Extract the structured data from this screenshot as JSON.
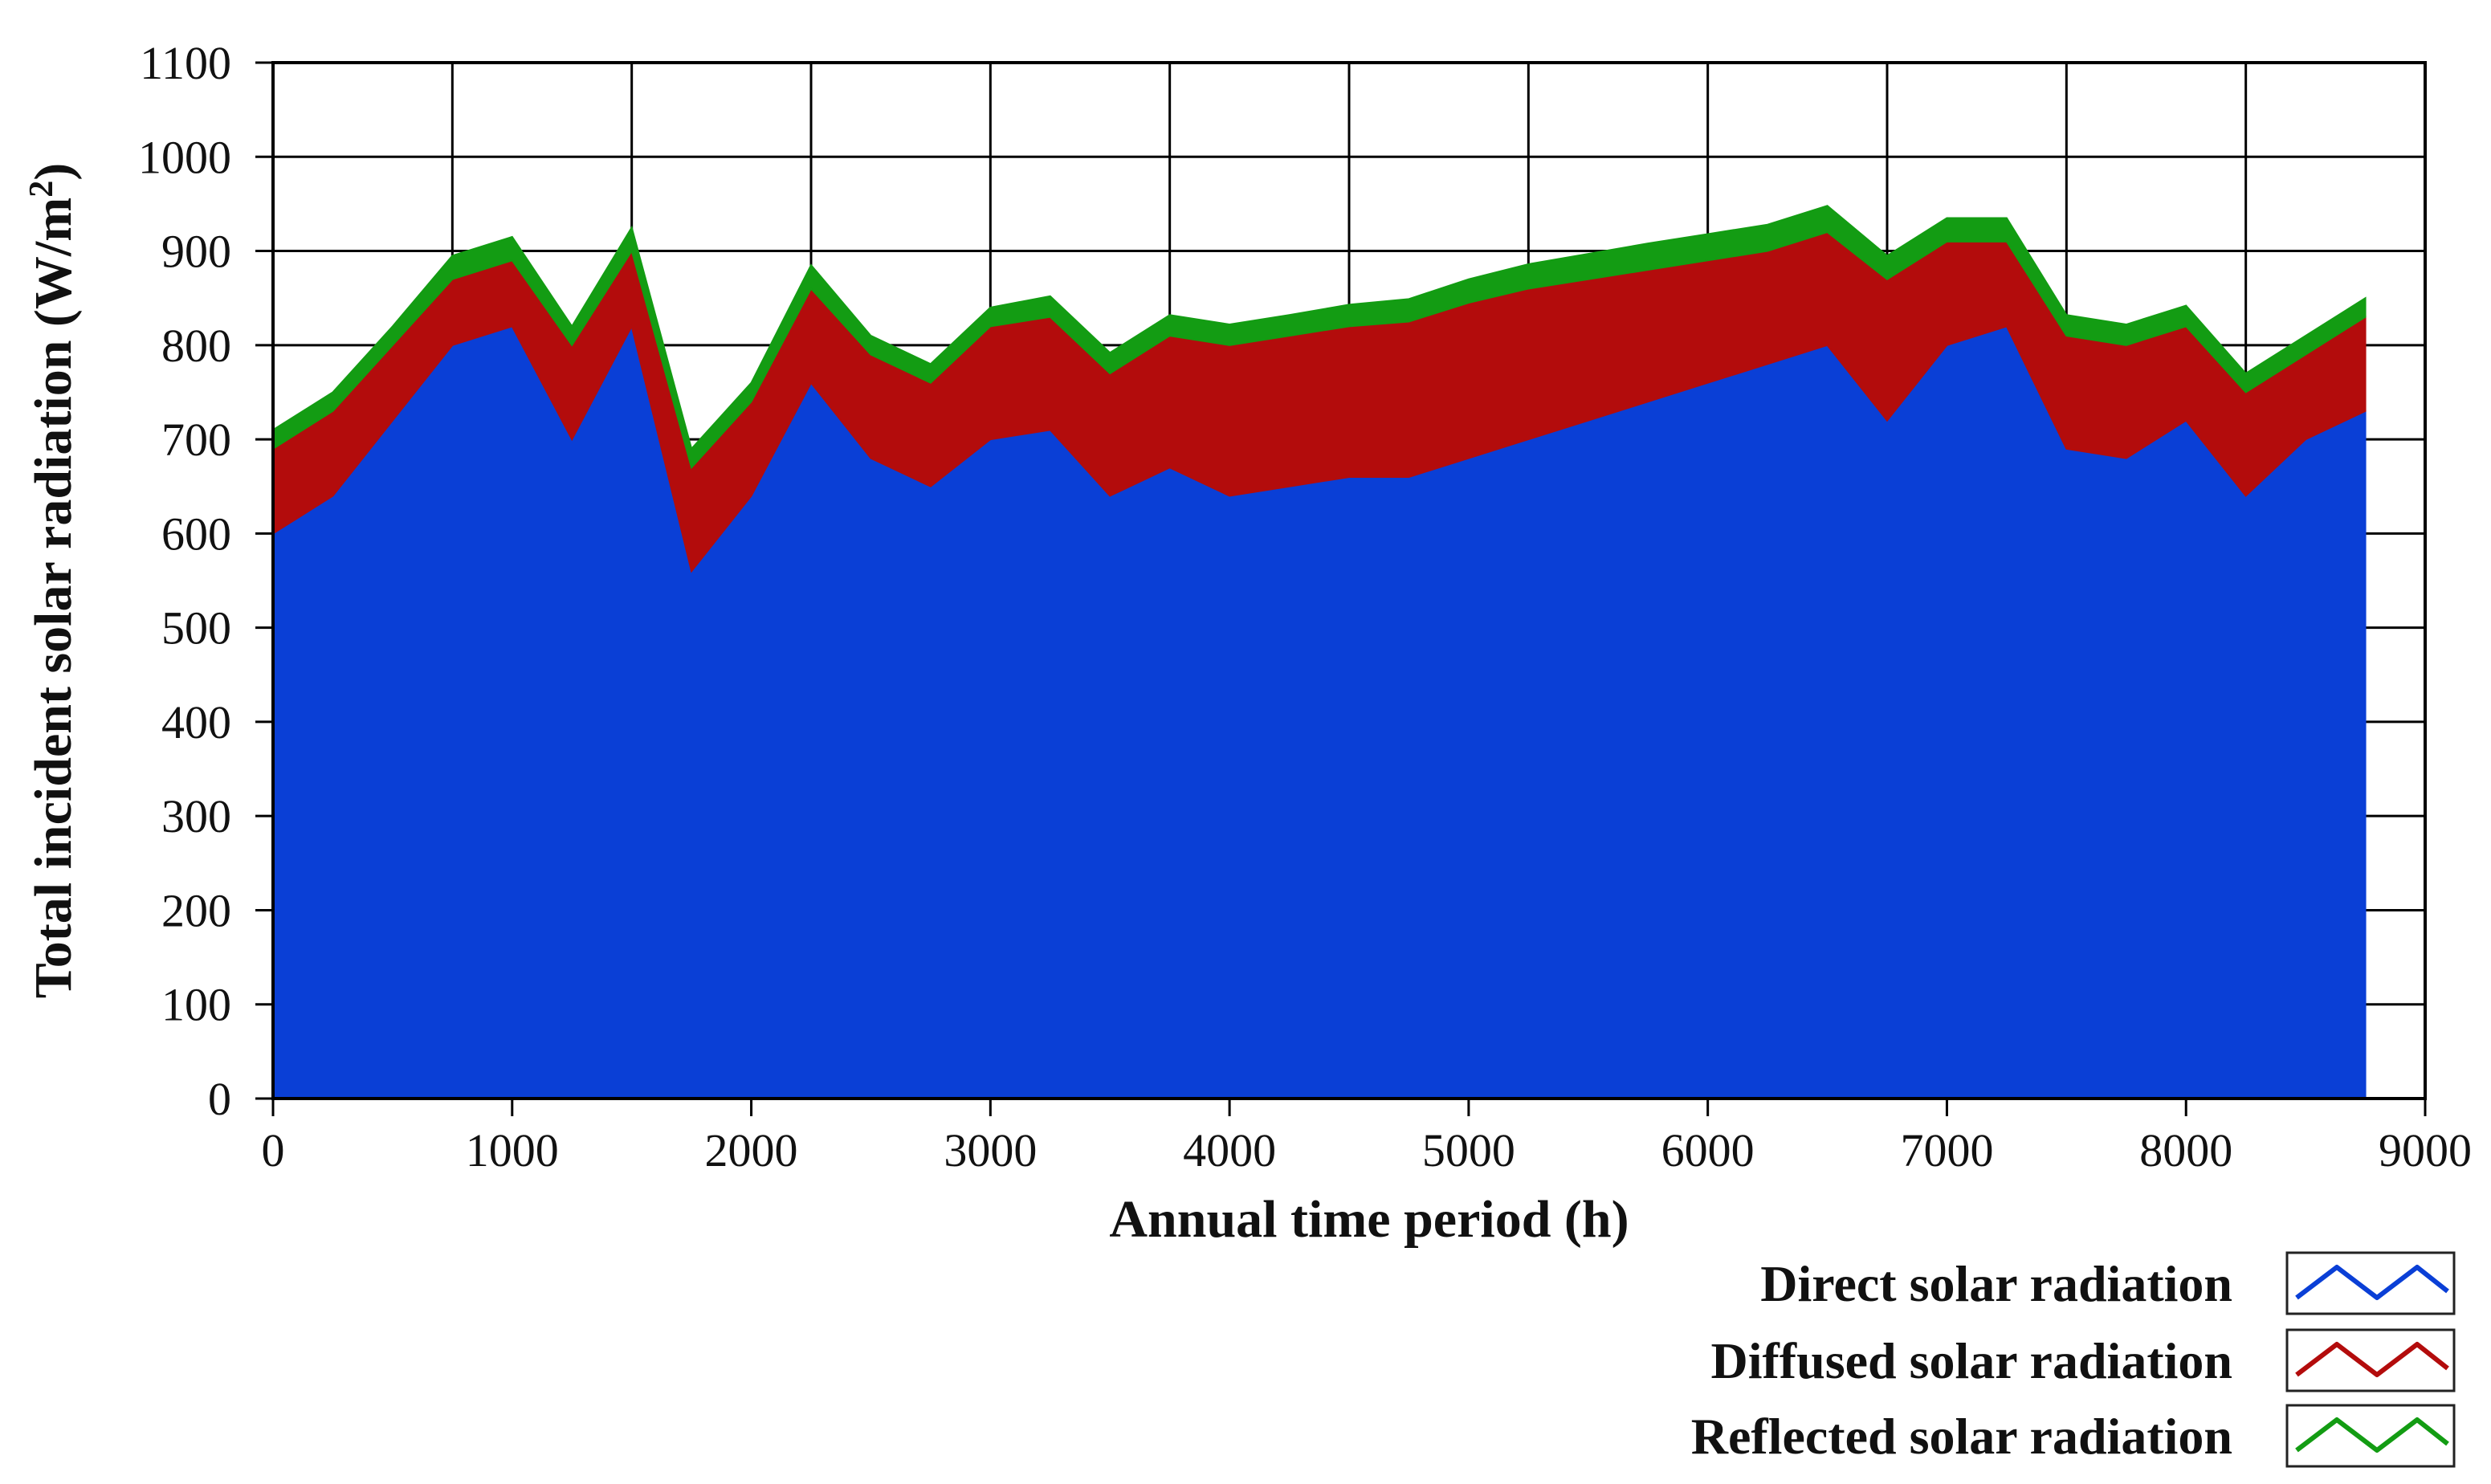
{
  "chart_data": {
    "type": "area",
    "stacked": true,
    "title": "",
    "xlabel": "Annual time period (h)",
    "ylabel_main": "Total incident solar radiation (W/m",
    "ylabel_sup": "2",
    "ylabel_close": ")",
    "xlim": [
      0,
      9000
    ],
    "ylim": [
      0,
      1100
    ],
    "xticks": [
      0,
      1000,
      2000,
      3000,
      4000,
      5000,
      6000,
      7000,
      8000,
      9000
    ],
    "yticks": [
      0,
      100,
      200,
      300,
      400,
      500,
      600,
      700,
      800,
      900,
      1000,
      1100
    ],
    "grid": true,
    "legend_position": "bottom-right",
    "x": [
      0,
      250,
      500,
      750,
      1000,
      1250,
      1500,
      1750,
      2000,
      2250,
      2500,
      2750,
      3000,
      3250,
      3500,
      3750,
      4000,
      4250,
      4500,
      4750,
      5000,
      5250,
      5500,
      5750,
      6000,
      6250,
      6500,
      6750,
      7000,
      7250,
      7500,
      7750,
      8000,
      8250,
      8500,
      8750
    ],
    "series": [
      {
        "name": "Direct solar radiation",
        "color": "#0a3fd6",
        "values": [
          600,
          640,
          720,
          800,
          820,
          700,
          820,
          560,
          640,
          760,
          680,
          650,
          700,
          710,
          640,
          670,
          640,
          650,
          660,
          660,
          680,
          700,
          720,
          740,
          760,
          780,
          800,
          720,
          800,
          820,
          690,
          680,
          720,
          640,
          700,
          730
        ]
      },
      {
        "name": "Diffused solar radiation",
        "color": "#b30c0c",
        "values": [
          90,
          90,
          80,
          70,
          70,
          100,
          80,
          110,
          100,
          100,
          110,
          110,
          120,
          120,
          130,
          140,
          160,
          160,
          160,
          165,
          165,
          160,
          150,
          140,
          130,
          120,
          120,
          150,
          110,
          90,
          120,
          120,
          100,
          110,
          90,
          100
        ]
      },
      {
        "name": "Reflected solar radiation",
        "color": "#139c13",
        "values": [
          20,
          20,
          20,
          25,
          25,
          20,
          25,
          20,
          20,
          25,
          20,
          20,
          20,
          22,
          22,
          22,
          22,
          22,
          23,
          24,
          25,
          26,
          27,
          28,
          28,
          28,
          28,
          25,
          25,
          25,
          22,
          22,
          22,
          20,
          20,
          20
        ]
      }
    ],
    "legend": [
      {
        "label": "Direct solar radiation",
        "color": "#0a3fd6"
      },
      {
        "label": "Diffused solar radiation",
        "color": "#b30c0c"
      },
      {
        "label": "Reflected solar radiation",
        "color": "#139c13"
      }
    ]
  }
}
